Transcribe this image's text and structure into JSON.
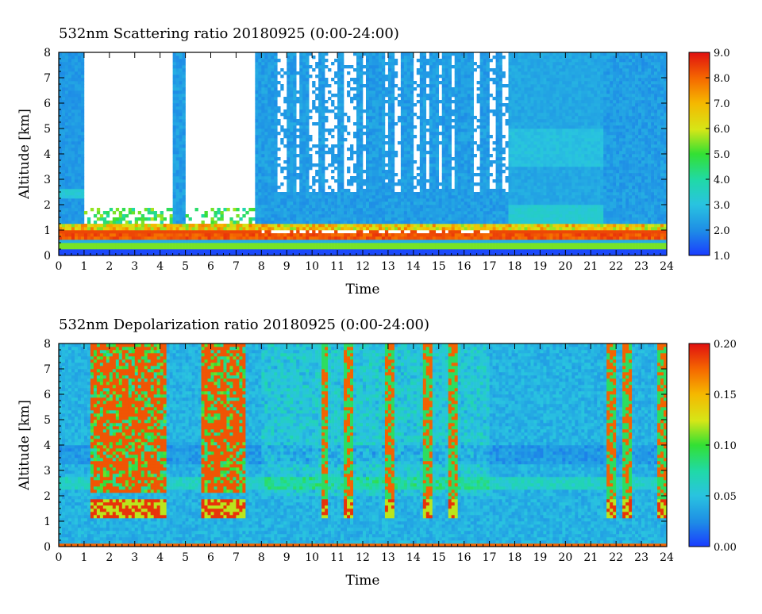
{
  "chart_data": [
    {
      "type": "heatmap",
      "title": "532nm Scattering ratio  20180925 (0:00-24:00)",
      "xlabel": "Time",
      "ylabel": "Altitude [km]",
      "xlim": [
        0,
        24
      ],
      "ylim": [
        0,
        8
      ],
      "x_ticks": [
        "0",
        "1",
        "2",
        "3",
        "4",
        "5",
        "6",
        "7",
        "8",
        "9",
        "10",
        "11",
        "12",
        "13",
        "14",
        "15",
        "16",
        "17",
        "18",
        "19",
        "20",
        "21",
        "22",
        "23",
        "24"
      ],
      "y_ticks": [
        "0",
        "1",
        "2",
        "3",
        "4",
        "5",
        "6",
        "7",
        "8"
      ],
      "colorbar": {
        "min": 1.0,
        "max": 9.0,
        "tick_labels": [
          "1.0",
          "2.0",
          "3.0",
          "4.0",
          "5.0",
          "6.0",
          "7.0",
          "8.0",
          "9.0"
        ]
      },
      "features": {
        "no_data_white_periods_hours": [
          [
            1.0,
            4.6
          ],
          [
            5.0,
            7.8
          ]
        ],
        "cloud_columns_hours": [
          4.7,
          7.9,
          8.2,
          8.5,
          9.2,
          9.7,
          10.4,
          11.1,
          11.9,
          12.3,
          12.7,
          13.1,
          13.6,
          13.9,
          14.4,
          14.8,
          15.3,
          15.8,
          16.2,
          16.8,
          17.4,
          21.8,
          22.3,
          22.9,
          23.8
        ],
        "boundary_layer_top_km": 1.3
      }
    },
    {
      "type": "heatmap",
      "title": "532nm Depolarization ratio  20180925 (0:00-24:00)",
      "xlabel": "Time",
      "ylabel": "Altitude [km]",
      "xlim": [
        0,
        24
      ],
      "ylim": [
        0,
        8
      ],
      "x_ticks": [
        "0",
        "1",
        "2",
        "3",
        "4",
        "5",
        "6",
        "7",
        "8",
        "9",
        "10",
        "11",
        "12",
        "13",
        "14",
        "15",
        "16",
        "17",
        "18",
        "19",
        "20",
        "21",
        "22",
        "23",
        "24"
      ],
      "y_ticks": [
        "0",
        "1",
        "2",
        "3",
        "4",
        "5",
        "6",
        "7",
        "8"
      ],
      "colorbar": {
        "min": 0.0,
        "max": 0.2,
        "tick_labels": [
          "0.00",
          "0.05",
          "0.10",
          "0.15",
          "0.20"
        ]
      },
      "features": {
        "high_depol_periods_hours": [
          [
            1.2,
            4.2
          ],
          [
            5.6,
            7.4
          ]
        ],
        "high_depol_columns_hours": [
          10.5,
          11.4,
          13.1,
          14.6,
          15.6,
          21.8,
          22.4,
          23.8
        ],
        "low_layer_km": 1.5
      }
    }
  ]
}
